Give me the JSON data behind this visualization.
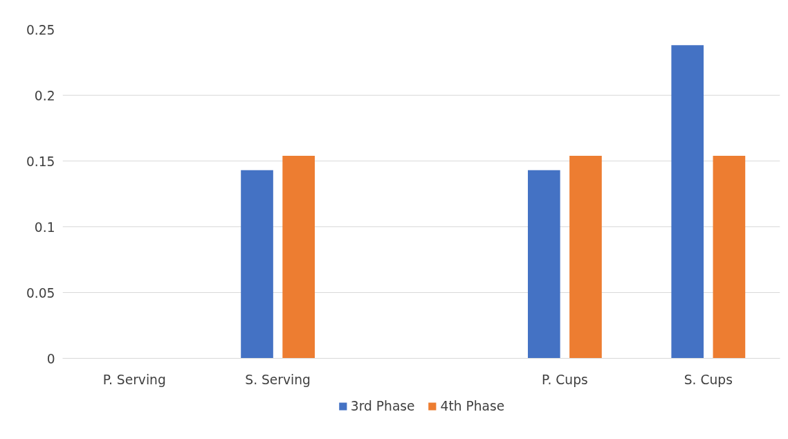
{
  "chart_data": {
    "type": "bar",
    "categories": [
      "P. Serving",
      "S. Serving",
      null,
      "P. Cups",
      "S. Cups"
    ],
    "series": [
      {
        "name": "3rd Phase",
        "color": "#4472c4",
        "values": [
          0,
          0.143,
          null,
          0.143,
          0.238
        ]
      },
      {
        "name": "4th Phase",
        "color": "#ed7d31",
        "values": [
          0,
          0.154,
          null,
          0.154,
          0.154
        ]
      }
    ],
    "ylim": [
      0,
      0.25
    ],
    "yticks": [
      0,
      0.05,
      0.1,
      0.15,
      0.2,
      0.25
    ],
    "grid": "y",
    "legend": "bottom"
  }
}
